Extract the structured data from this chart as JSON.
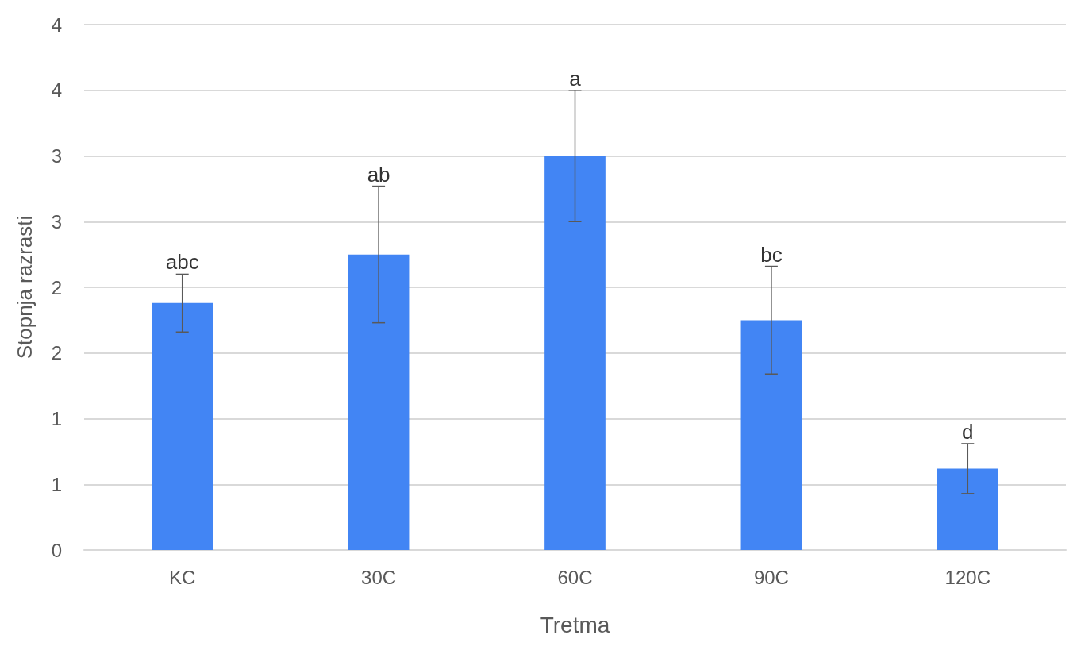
{
  "chart_data": {
    "type": "bar",
    "xlabel": "Tretma",
    "ylabel": "Stopnja razrasti",
    "categories": [
      "KC",
      "30C",
      "60C",
      "90C",
      "120C"
    ],
    "values": [
      1.88,
      2.25,
      3.0,
      1.75,
      0.62
    ],
    "errors": [
      0.22,
      0.52,
      0.5,
      0.41,
      0.19
    ],
    "color": "#4285f4",
    "ylim": [
      0,
      4
    ],
    "yticks": [
      0,
      {
        "value": 0.5,
        "label": "1"
      },
      1,
      {
        "value": 1.5,
        "label": "2"
      },
      2,
      {
        "value": 2.5,
        "label": "3"
      },
      3,
      {
        "value": 3.5,
        "label": "4"
      },
      4
    ],
    "grid": "y",
    "annotations": [
      {
        "text": "abc",
        "x": "KC",
        "y": 2.1
      },
      {
        "text": "ab",
        "x": "30C",
        "y": 2.77
      },
      {
        "text": "a",
        "x": "60C",
        "y": 3.5
      },
      {
        "text": "bc",
        "x": "90C",
        "y": 2.16
      },
      {
        "text": "d",
        "x": "120C",
        "y": 0.81
      }
    ]
  }
}
